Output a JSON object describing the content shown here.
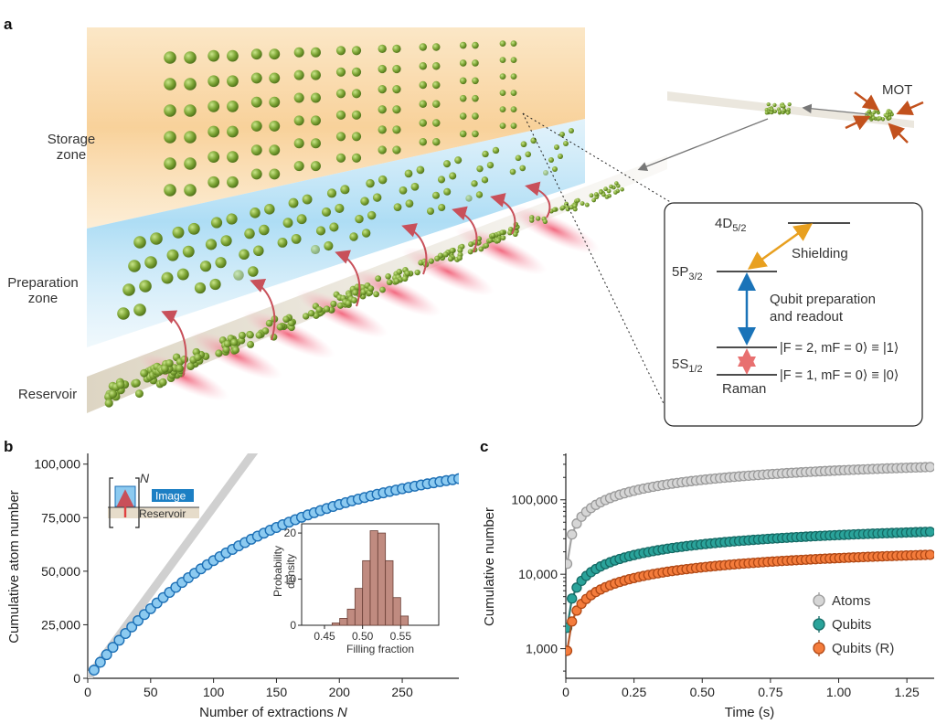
{
  "panel_a": {
    "letter": "a",
    "zone_labels": {
      "storage": [
        "Storage",
        "zone"
      ],
      "preparation": [
        "Preparation",
        "zone"
      ],
      "reservoir": "Reservoir"
    },
    "mot_label": "MOT",
    "level_diagram": {
      "levels": {
        "d52": "4D5/2",
        "p32": "5P3/2",
        "s12": "5S1/2"
      },
      "shielding": "Shielding",
      "qubit_prep": [
        "Qubit preparation",
        "and readout"
      ],
      "state_f2": "|F = 2, mF = 0⟩ ≡ |1⟩",
      "state_f1": "|F = 1, mF = 0⟩ ≡ |0⟩",
      "raman": "Raman",
      "colors": {
        "shielding_arrow": "#e8a020",
        "qubit_arrow": "#1a73b8",
        "raman_arrow": "#e87070"
      }
    }
  },
  "chart_data": [
    {
      "panel": "b",
      "type": "scatter",
      "xlabel": "Number of extractions N",
      "ylabel": "Cumulative atom number",
      "xlim": [
        0,
        295
      ],
      "ylim": [
        0,
        105000
      ],
      "xticks": [
        0,
        50,
        100,
        150,
        200,
        250
      ],
      "yticks": [
        0,
        25000,
        50000,
        75000,
        100000
      ],
      "ytick_labels": [
        "0",
        "25,000",
        "50,000",
        "75,000",
        "100,000"
      ],
      "series_model": {
        "A": 105000,
        "N0": 135,
        "step": 5,
        "nmax": 295
      },
      "ideal_line_slope": 800,
      "marker_color": "#8ccaf0",
      "marker_edge": "#1c6fb5",
      "inset_schematic": {
        "n_label": "N",
        "image_label": "Image",
        "reservoir_label": "Reservoir"
      },
      "inset_histogram": {
        "type": "bar",
        "xlabel": "Filling fraction",
        "ylabel": [
          "Probability",
          "density"
        ],
        "xlim": [
          0.42,
          0.6
        ],
        "ylim": [
          0,
          22
        ],
        "xticks": [
          0.45,
          0.5,
          0.55
        ],
        "xtick_labels": [
          "0.45",
          "0.50",
          "0.55"
        ],
        "yticks": [
          0,
          10,
          20
        ],
        "bin_edges": [
          0.46,
          0.47,
          0.48,
          0.49,
          0.5,
          0.51,
          0.52,
          0.53,
          0.54,
          0.55,
          0.56
        ],
        "values": [
          0.5,
          1.5,
          3.5,
          8,
          14,
          20.5,
          20,
          14,
          6,
          2
        ],
        "bar_color": "#c08b80"
      }
    },
    {
      "panel": "c",
      "type": "scatter",
      "xlabel": "Time (s)",
      "ylabel": "Cumulative number",
      "xlim": [
        0,
        1.35
      ],
      "ylim_log": [
        400,
        420000
      ],
      "xticks": [
        0,
        0.25,
        0.5,
        0.75,
        1.0,
        1.25
      ],
      "xtick_labels": [
        "0",
        "0.25",
        "0.50",
        "0.75",
        "1.00",
        "1.25"
      ],
      "yticks": [
        1000,
        10000,
        100000
      ],
      "ytick_labels": [
        "1,000",
        "10,000",
        "100,000"
      ],
      "series": [
        {
          "name": "Atoms",
          "color": "#d6d6d6",
          "edge": "#9a9a9a",
          "A": 420000,
          "tau": 1.2,
          "x0": 0.005,
          "step": 0.0175
        },
        {
          "name": "Qubits",
          "color": "#2aa39a",
          "edge": "#156a65",
          "A": 55000,
          "tau": 1.1,
          "x0": 0.005,
          "step": 0.0175
        },
        {
          "name": "Qubits (R)",
          "color": "#f47c3c",
          "edge": "#b04815",
          "A": 27000,
          "tau": 1.1,
          "x0": 0.005,
          "step": 0.0175
        }
      ]
    }
  ]
}
